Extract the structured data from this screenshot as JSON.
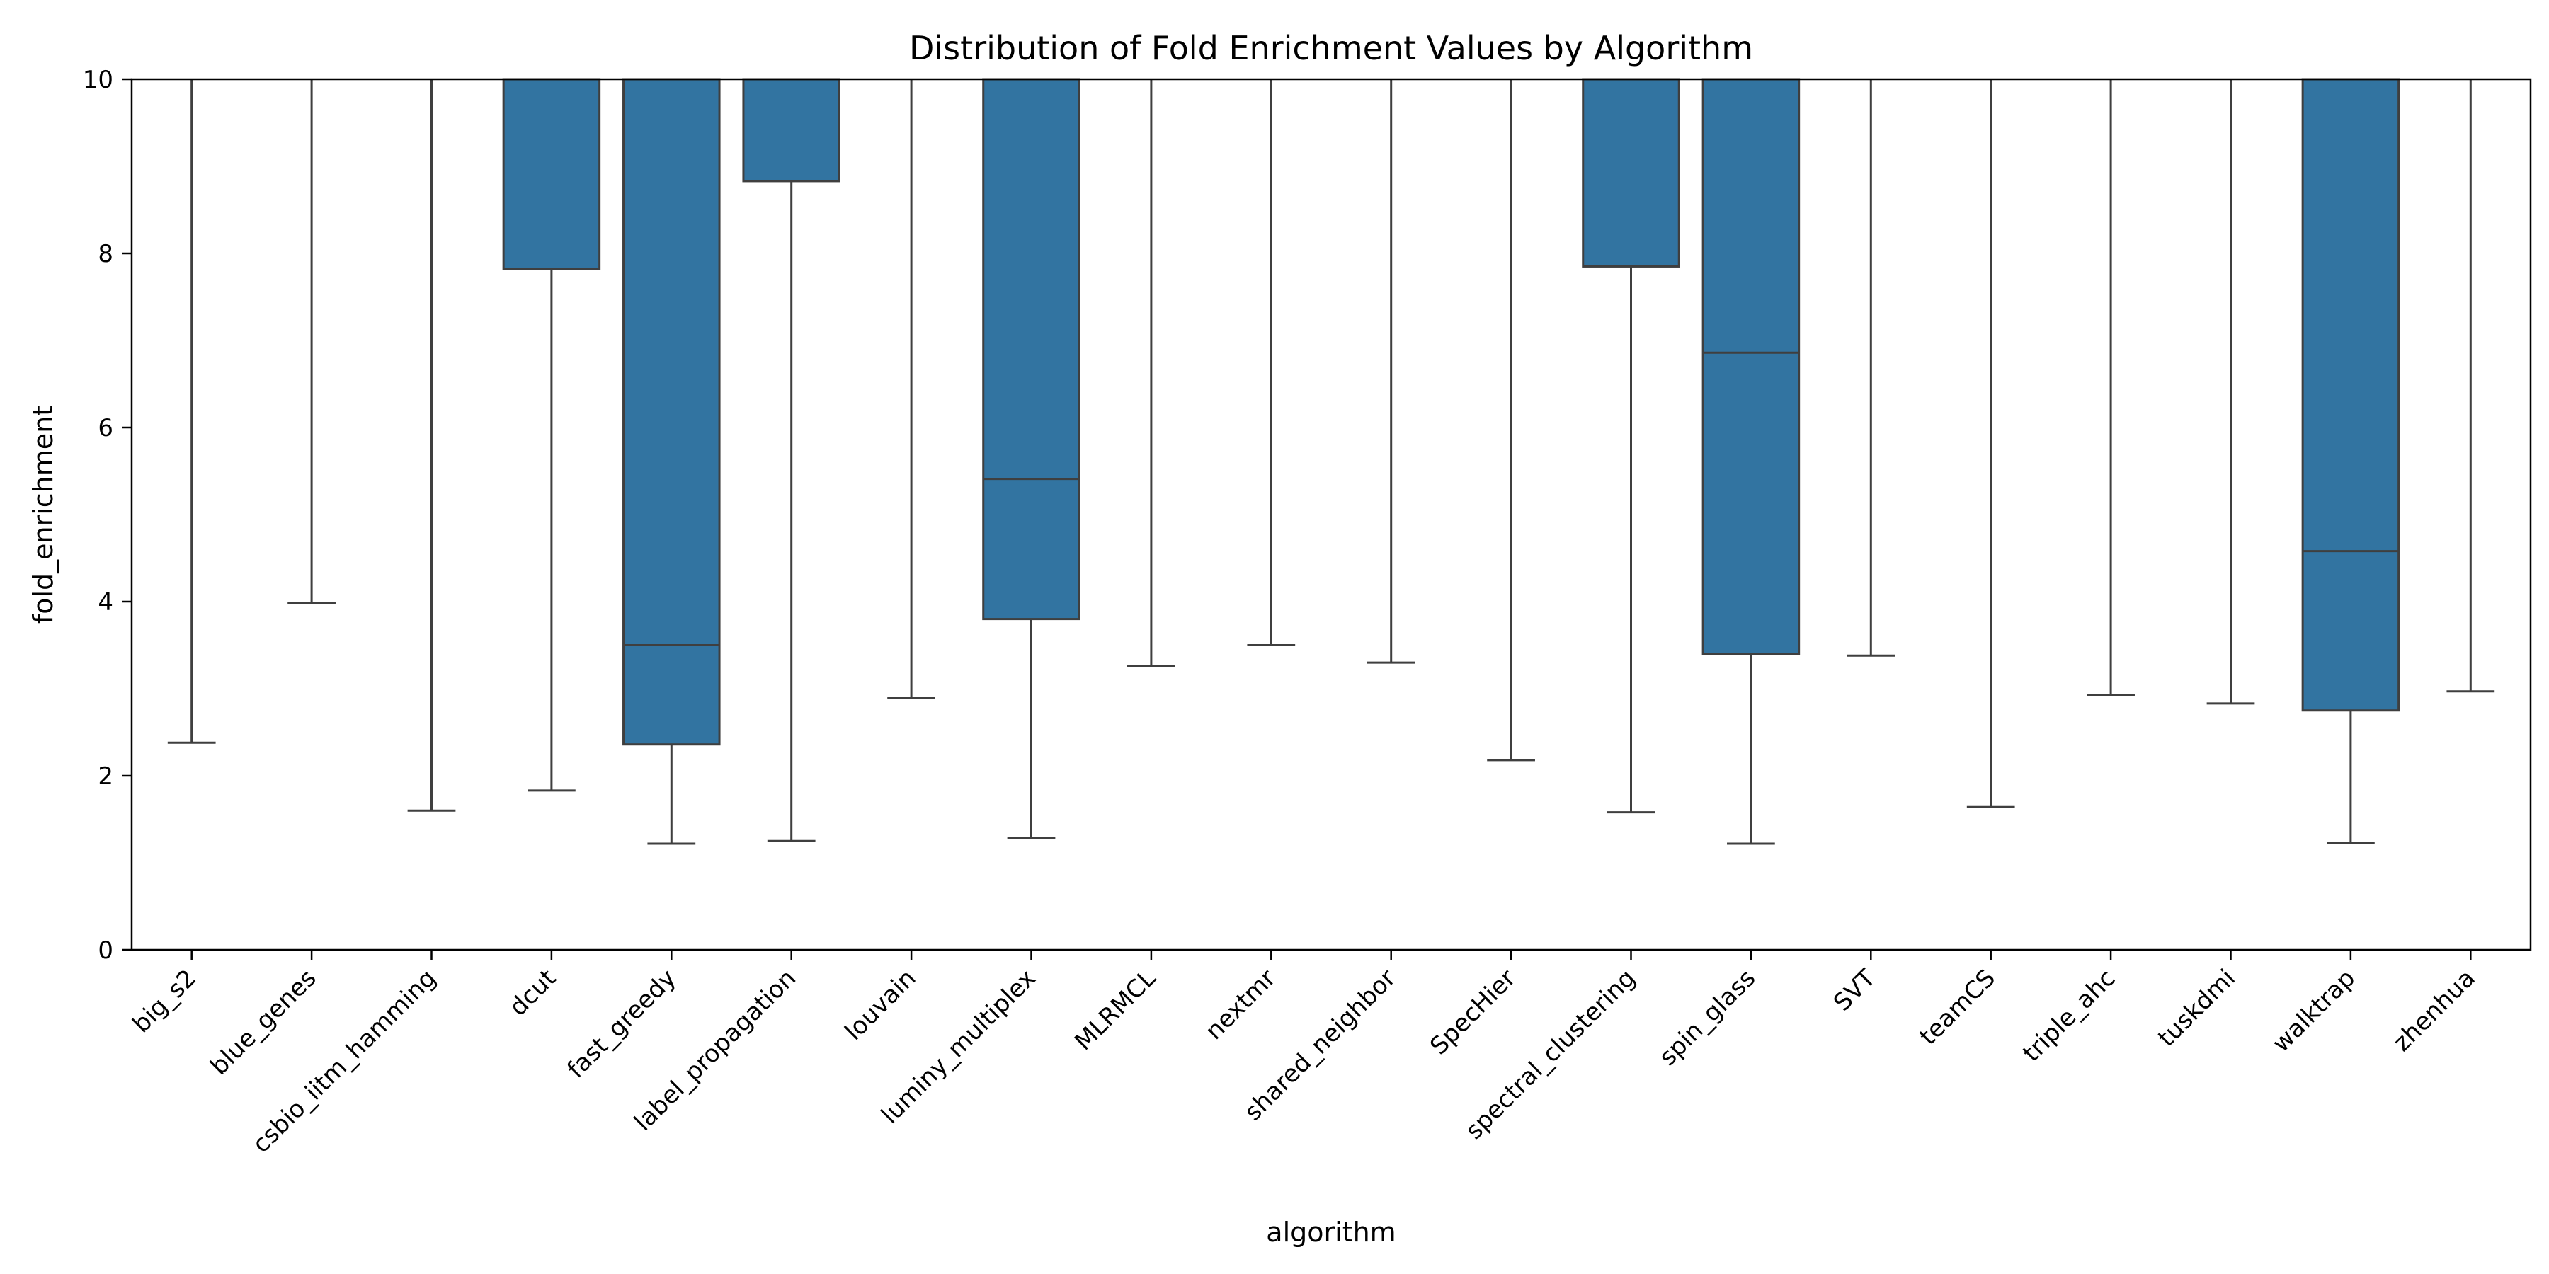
{
  "chart_data": {
    "type": "box",
    "title": "Distribution of Fold Enrichment Values by Algorithm",
    "xlabel": "algorithm",
    "ylabel": "fold_enrichment",
    "ylim": [
      0,
      10
    ],
    "yticks": [
      0,
      2,
      4,
      6,
      8,
      10
    ],
    "grid": false,
    "legend": "none",
    "box_color": "#3274a1",
    "line_color": "#3f3f3f",
    "categories": [
      "big_s2",
      "blue_genes",
      "csbio_iitm_hamming",
      "dcut",
      "fast_greedy",
      "label_propagation",
      "louvain",
      "luminy_multiplex",
      "MLRMCL",
      "nextmr",
      "shared_neighbor",
      "SpecHier",
      "spectral_clustering",
      "spin_glass",
      "SVT",
      "teamCS",
      "triple_ahc",
      "tuskdmi",
      "walktrap",
      "zhenhua"
    ],
    "boxes": [
      {
        "whisker_low": 2.38,
        "q1": 10,
        "median": 10,
        "q3": 10,
        "whisker_high": 10
      },
      {
        "whisker_low": 3.98,
        "q1": 10,
        "median": 10,
        "q3": 10,
        "whisker_high": 10
      },
      {
        "whisker_low": 1.6,
        "q1": 10,
        "median": 10,
        "q3": 10,
        "whisker_high": 10
      },
      {
        "whisker_low": 1.83,
        "q1": 7.82,
        "median": 10,
        "q3": 10,
        "whisker_high": 10
      },
      {
        "whisker_low": 1.22,
        "q1": 2.36,
        "median": 3.5,
        "q3": 10,
        "whisker_high": 10
      },
      {
        "whisker_low": 1.25,
        "q1": 8.83,
        "median": 10,
        "q3": 10,
        "whisker_high": 10
      },
      {
        "whisker_low": 2.89,
        "q1": 10,
        "median": 10,
        "q3": 10,
        "whisker_high": 10
      },
      {
        "whisker_low": 1.28,
        "q1": 3.8,
        "median": 5.41,
        "q3": 10,
        "whisker_high": 10
      },
      {
        "whisker_low": 3.26,
        "q1": 10,
        "median": 10,
        "q3": 10,
        "whisker_high": 10
      },
      {
        "whisker_low": 3.5,
        "q1": 10,
        "median": 10,
        "q3": 10,
        "whisker_high": 10
      },
      {
        "whisker_low": 3.3,
        "q1": 10,
        "median": 10,
        "q3": 10,
        "whisker_high": 10
      },
      {
        "whisker_low": 2.18,
        "q1": 10,
        "median": 10,
        "q3": 10,
        "whisker_high": 10
      },
      {
        "whisker_low": 1.58,
        "q1": 7.85,
        "median": 10,
        "q3": 10,
        "whisker_high": 10
      },
      {
        "whisker_low": 1.22,
        "q1": 3.4,
        "median": 6.86,
        "q3": 10,
        "whisker_high": 10
      },
      {
        "whisker_low": 3.38,
        "q1": 10,
        "median": 10,
        "q3": 10,
        "whisker_high": 10
      },
      {
        "whisker_low": 1.64,
        "q1": 10,
        "median": 10,
        "q3": 10,
        "whisker_high": 10
      },
      {
        "whisker_low": 2.93,
        "q1": 10,
        "median": 10,
        "q3": 10,
        "whisker_high": 10
      },
      {
        "whisker_low": 2.83,
        "q1": 10,
        "median": 10,
        "q3": 10,
        "whisker_high": 10
      },
      {
        "whisker_low": 1.23,
        "q1": 2.75,
        "median": 4.58,
        "q3": 10,
        "whisker_high": 10
      },
      {
        "whisker_low": 2.97,
        "q1": 10,
        "median": 10,
        "q3": 10,
        "whisker_high": 10
      }
    ]
  }
}
